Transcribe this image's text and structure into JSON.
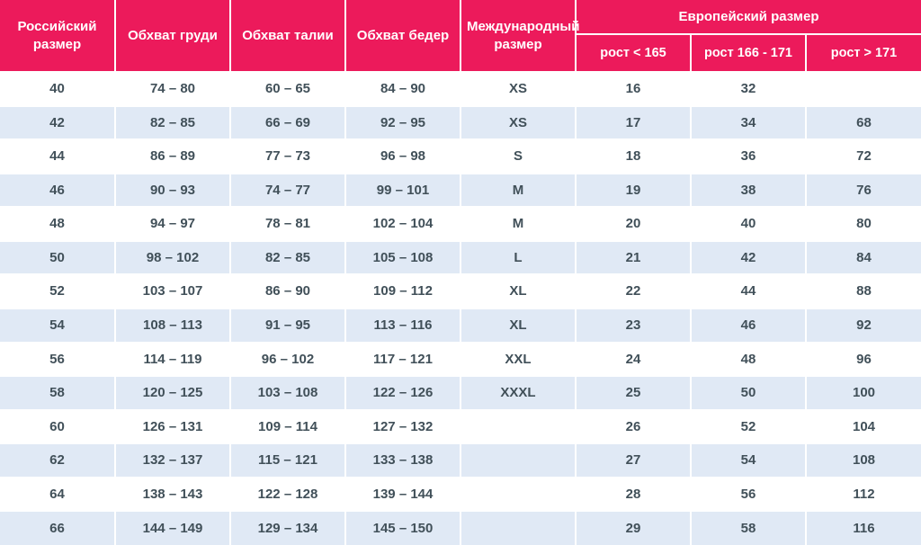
{
  "colors": {
    "header_bg": "#ec1a5b",
    "header_text": "#ffffff",
    "row_bg": "#ffffff",
    "row_alt_bg": "#e0e9f5",
    "text": "#415059",
    "divider": "#ffffff"
  },
  "chart_data": {
    "type": "table",
    "columns": [
      "Российский размер",
      "Обхват груди",
      "Обхват талии",
      "Обхват бедер",
      "Международный размер"
    ],
    "column_group": {
      "label": "Европейский размер",
      "subcolumns": [
        "рост < 165",
        "рост 166 - 171",
        "рост > 171"
      ]
    },
    "rows": [
      [
        "40",
        "74 – 80",
        "60 – 65",
        "84 – 90",
        "XS",
        "16",
        "32",
        ""
      ],
      [
        "42",
        "82 – 85",
        "66 – 69",
        "92 – 95",
        "XS",
        "17",
        "34",
        "68"
      ],
      [
        "44",
        "86 – 89",
        "77 – 73",
        "96 – 98",
        "S",
        "18",
        "36",
        "72"
      ],
      [
        "46",
        "90 – 93",
        "74 – 77",
        "99 – 101",
        "M",
        "19",
        "38",
        "76"
      ],
      [
        "48",
        "94 – 97",
        "78 – 81",
        "102 – 104",
        "M",
        "20",
        "40",
        "80"
      ],
      [
        "50",
        "98 – 102",
        "82 – 85",
        "105 – 108",
        "L",
        "21",
        "42",
        "84"
      ],
      [
        "52",
        "103 – 107",
        "86 – 90",
        "109 – 112",
        "XL",
        "22",
        "44",
        "88"
      ],
      [
        "54",
        "108 – 113",
        "91 – 95",
        "113 – 116",
        "XL",
        "23",
        "46",
        "92"
      ],
      [
        "56",
        "114 – 119",
        "96 – 102",
        "117 – 121",
        "XXL",
        "24",
        "48",
        "96"
      ],
      [
        "58",
        "120 – 125",
        "103 – 108",
        "122 – 126",
        "XXXL",
        "25",
        "50",
        "100"
      ],
      [
        "60",
        "126 – 131",
        "109 – 114",
        "127 – 132",
        "",
        "26",
        "52",
        "104"
      ],
      [
        "62",
        "132 – 137",
        "115 – 121",
        "133 – 138",
        "",
        "27",
        "54",
        "108"
      ],
      [
        "64",
        "138 – 143",
        "122 – 128",
        "139 – 144",
        "",
        "28",
        "56",
        "112"
      ],
      [
        "66",
        "144 – 149",
        "129 – 134",
        "145 – 150",
        "",
        "29",
        "58",
        "116"
      ]
    ]
  }
}
